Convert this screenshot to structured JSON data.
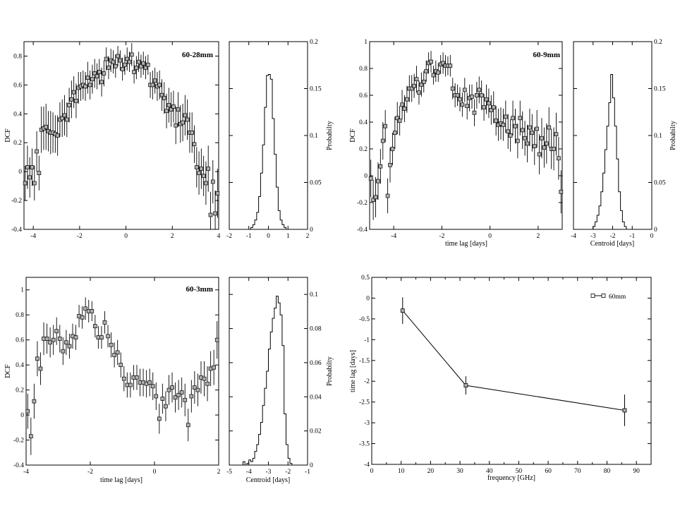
{
  "chart_data": [
    {
      "type": "scatter",
      "title": "60-28mm",
      "xlabel": "",
      "ylabel": "DCF",
      "xlim": [
        -4.4,
        4.0
      ],
      "ylim": [
        -0.4,
        0.9
      ],
      "xticks": [
        "-4",
        "-2",
        "0",
        "2",
        "4"
      ],
      "yticks": [
        "-0.4",
        "-0.2",
        "0",
        "0.2",
        "0.4",
        "0.6",
        "0.8"
      ],
      "error_bars": true,
      "x": [
        -4.35,
        -4.25,
        -4.15,
        -4.05,
        -3.95,
        -3.85,
        -3.75,
        -3.65,
        -3.55,
        -3.45,
        -3.35,
        -3.25,
        -3.15,
        -3.05,
        -2.95,
        -2.85,
        -2.75,
        -2.65,
        -2.55,
        -2.45,
        -2.35,
        -2.25,
        -2.15,
        -2.05,
        -1.95,
        -1.85,
        -1.75,
        -1.65,
        -1.55,
        -1.45,
        -1.35,
        -1.25,
        -1.15,
        -1.05,
        -0.95,
        -0.85,
        -0.75,
        -0.65,
        -0.55,
        -0.45,
        -0.35,
        -0.25,
        -0.15,
        -0.05,
        0.05,
        0.15,
        0.25,
        0.35,
        0.45,
        0.55,
        0.65,
        0.75,
        0.85,
        0.95,
        1.05,
        1.15,
        1.25,
        1.35,
        1.45,
        1.55,
        1.65,
        1.75,
        1.85,
        1.95,
        2.05,
        2.15,
        2.25,
        2.35,
        2.45,
        2.55,
        2.65,
        2.75,
        2.85,
        2.95,
        3.05,
        3.15,
        3.25,
        3.35,
        3.45,
        3.55,
        3.65,
        3.75,
        3.85,
        3.95
      ],
      "y": [
        -0.08,
        0.03,
        -0.04,
        0.03,
        -0.08,
        0.14,
        -0.01,
        0.29,
        0.3,
        0.31,
        0.28,
        0.27,
        0.27,
        0.26,
        0.25,
        0.36,
        0.37,
        0.39,
        0.36,
        0.46,
        0.5,
        0.55,
        0.49,
        0.58,
        0.59,
        0.6,
        0.59,
        0.65,
        0.6,
        0.64,
        0.68,
        0.66,
        0.69,
        0.62,
        0.68,
        0.78,
        0.72,
        0.77,
        0.76,
        0.73,
        0.8,
        0.77,
        0.71,
        0.74,
        0.78,
        0.76,
        0.81,
        0.69,
        0.72,
        0.76,
        0.73,
        0.75,
        0.72,
        0.74,
        0.6,
        0.6,
        0.63,
        0.59,
        0.6,
        0.53,
        0.51,
        0.42,
        0.46,
        0.43,
        0.45,
        0.32,
        0.43,
        0.33,
        0.34,
        0.39,
        0.36,
        0.27,
        0.27,
        0.19,
        0.03,
        -0.01,
        0.02,
        -0.03,
        -0.08,
        0.02,
        -0.3,
        -0.07,
        -0.29,
        -0.15
      ],
      "yerr": [
        0.12,
        0.15,
        0.14,
        0.13,
        0.12,
        0.14,
        0.12,
        0.16,
        0.15,
        0.16,
        0.14,
        0.15,
        0.14,
        0.13,
        0.14,
        0.12,
        0.13,
        0.14,
        0.12,
        0.12,
        0.13,
        0.11,
        0.12,
        0.11,
        0.1,
        0.1,
        0.1,
        0.11,
        0.1,
        0.1,
        0.1,
        0.09,
        0.09,
        0.1,
        0.09,
        0.08,
        0.08,
        0.08,
        0.08,
        0.08,
        0.07,
        0.07,
        0.08,
        0.07,
        0.08,
        0.07,
        0.08,
        0.08,
        0.08,
        0.07,
        0.08,
        0.08,
        0.08,
        0.07,
        0.09,
        0.1,
        0.09,
        0.1,
        0.1,
        0.11,
        0.11,
        0.12,
        0.12,
        0.12,
        0.11,
        0.13,
        0.12,
        0.13,
        0.13,
        0.14,
        0.14,
        0.14,
        0.14,
        0.13,
        0.14,
        0.15,
        0.14,
        0.14,
        0.15,
        0.16,
        0.16,
        0.15,
        0.16,
        0.17
      ],
      "fit_line_through_points": false,
      "stroke": "#000000",
      "marker_fill": "#b0b0b0"
    },
    {
      "type": "histogram",
      "title": "",
      "xlabel": "",
      "ylabel": "Probabilty",
      "y_axis_side": "right",
      "xlim": [
        -2.0,
        2.0
      ],
      "ylim": [
        0,
        0.2
      ],
      "xticks": [
        "-2",
        "-1",
        "0",
        "1",
        "2"
      ],
      "yticks": [
        "0",
        "0.05",
        "0.1",
        "0.15",
        "0.2"
      ],
      "bin_width": 0.1,
      "bin_start": -1.0,
      "values": [
        0.0,
        0.002,
        0.005,
        0.01,
        0.018,
        0.035,
        0.06,
        0.09,
        0.13,
        0.164,
        0.165,
        0.16,
        0.118,
        0.08,
        0.045,
        0.02,
        0.01,
        0.005,
        0.002,
        0.0
      ]
    },
    {
      "type": "scatter",
      "title": "60-9mm",
      "xlabel": "time lag [days]",
      "ylabel": "DCF",
      "xlim": [
        -5.0,
        3.0
      ],
      "ylim": [
        -0.4,
        1.0
      ],
      "xticks": [
        "-4",
        "-2",
        "0",
        "2"
      ],
      "yticks": [
        "-0.4",
        "-0.2",
        "0",
        "0.2",
        "0.4",
        "0.6",
        "0.8",
        "1"
      ],
      "error_bars": true,
      "x": [
        -4.95,
        -4.85,
        -4.75,
        -4.65,
        -4.55,
        -4.45,
        -4.35,
        -4.25,
        -4.15,
        -4.05,
        -3.95,
        -3.85,
        -3.75,
        -3.65,
        -3.55,
        -3.45,
        -3.35,
        -3.25,
        -3.15,
        -3.05,
        -2.95,
        -2.85,
        -2.75,
        -2.65,
        -2.55,
        -2.45,
        -2.35,
        -2.25,
        -2.15,
        -2.05,
        -1.95,
        -1.85,
        -1.75,
        -1.65,
        -1.55,
        -1.45,
        -1.35,
        -1.25,
        -1.15,
        -1.05,
        -0.95,
        -0.85,
        -0.75,
        -0.65,
        -0.55,
        -0.45,
        -0.35,
        -0.25,
        -0.15,
        -0.05,
        0.05,
        0.15,
        0.25,
        0.35,
        0.45,
        0.55,
        0.65,
        0.75,
        0.85,
        0.95,
        1.05,
        1.15,
        1.25,
        1.35,
        1.45,
        1.55,
        1.65,
        1.75,
        1.85,
        1.95,
        2.05,
        2.15,
        2.25,
        2.35,
        2.45,
        2.55,
        2.65,
        2.75,
        2.85,
        2.95
      ],
      "y": [
        -0.02,
        -0.18,
        -0.16,
        -0.04,
        0.07,
        0.26,
        0.37,
        -0.15,
        0.08,
        0.2,
        0.32,
        0.43,
        0.41,
        0.53,
        0.5,
        0.57,
        0.65,
        0.65,
        0.67,
        0.72,
        0.62,
        0.68,
        0.7,
        0.78,
        0.84,
        0.85,
        0.75,
        0.78,
        0.77,
        0.83,
        0.84,
        0.82,
        0.82,
        0.82,
        0.65,
        0.6,
        0.6,
        0.57,
        0.53,
        0.64,
        0.52,
        0.58,
        0.59,
        0.47,
        0.6,
        0.64,
        0.6,
        0.51,
        0.57,
        0.54,
        0.49,
        0.51,
        0.41,
        0.38,
        0.39,
        0.38,
        0.44,
        0.33,
        0.3,
        0.43,
        0.37,
        0.26,
        0.43,
        0.34,
        0.28,
        0.24,
        0.36,
        0.32,
        0.22,
        0.35,
        0.16,
        0.28,
        0.21,
        0.24,
        0.36,
        0.2,
        0.2,
        0.31,
        0.13,
        -0.12
      ],
      "yerr": [
        0.14,
        0.15,
        0.15,
        0.14,
        0.13,
        0.14,
        0.12,
        0.13,
        0.13,
        0.12,
        0.12,
        0.12,
        0.11,
        0.11,
        0.1,
        0.1,
        0.1,
        0.1,
        0.09,
        0.1,
        0.09,
        0.09,
        0.08,
        0.08,
        0.08,
        0.08,
        0.07,
        0.08,
        0.07,
        0.07,
        0.08,
        0.08,
        0.07,
        0.08,
        0.08,
        0.09,
        0.08,
        0.09,
        0.09,
        0.09,
        0.1,
        0.1,
        0.09,
        0.1,
        0.1,
        0.1,
        0.11,
        0.1,
        0.11,
        0.11,
        0.11,
        0.12,
        0.11,
        0.12,
        0.12,
        0.12,
        0.12,
        0.13,
        0.12,
        0.13,
        0.13,
        0.13,
        0.13,
        0.14,
        0.13,
        0.14,
        0.14,
        0.14,
        0.14,
        0.14,
        0.15,
        0.15,
        0.15,
        0.15,
        0.15,
        0.15,
        0.16,
        0.16,
        0.16,
        0.16
      ],
      "stroke": "#000000",
      "marker_fill": "#b0b0b0"
    },
    {
      "type": "histogram",
      "title": "",
      "xlabel": "Centroid [days]",
      "ylabel": "Probabilty",
      "y_axis_side": "right",
      "xlim": [
        -4.0,
        0.0
      ],
      "ylim": [
        0,
        0.2
      ],
      "xticks": [
        "-4",
        "-3",
        "-2",
        "-1",
        "0"
      ],
      "yticks": [
        "0",
        "0.05",
        "0.1",
        "0.15",
        "0.2"
      ],
      "bin_width": 0.1,
      "bin_start": -3.1,
      "values": [
        0.0,
        0.003,
        0.008,
        0.015,
        0.025,
        0.04,
        0.06,
        0.085,
        0.11,
        0.135,
        0.165,
        0.14,
        0.11,
        0.075,
        0.04,
        0.02,
        0.008,
        0.003,
        0.0
      ]
    },
    {
      "type": "scatter",
      "title": "60-3mm",
      "xlabel": "time lag [days]",
      "ylabel": "DCF",
      "xlim": [
        -4.0,
        2.0
      ],
      "ylim": [
        -0.4,
        1.1
      ],
      "xticks": [
        "-4",
        "-2",
        "0",
        "2"
      ],
      "yticks": [
        "-0.4",
        "-0.2",
        "0",
        "0.2",
        "0.4",
        "0.6",
        "0.8",
        "1"
      ],
      "error_bars": true,
      "x": [
        -3.95,
        -3.85,
        -3.75,
        -3.65,
        -3.55,
        -3.45,
        -3.35,
        -3.25,
        -3.15,
        -3.05,
        -2.95,
        -2.85,
        -2.75,
        -2.65,
        -2.55,
        -2.45,
        -2.35,
        -2.25,
        -2.15,
        -2.05,
        -1.95,
        -1.85,
        -1.75,
        -1.65,
        -1.55,
        -1.45,
        -1.35,
        -1.25,
        -1.15,
        -1.05,
        -0.95,
        -0.85,
        -0.75,
        -0.65,
        -0.55,
        -0.45,
        -0.35,
        -0.25,
        -0.15,
        -0.05,
        0.05,
        0.15,
        0.25,
        0.35,
        0.45,
        0.55,
        0.65,
        0.75,
        0.85,
        0.95,
        1.05,
        1.15,
        1.25,
        1.35,
        1.45,
        1.55,
        1.65,
        1.75,
        1.85,
        1.95
      ],
      "y": [
        0.03,
        -0.17,
        0.11,
        0.45,
        0.37,
        0.61,
        0.61,
        0.58,
        0.6,
        0.67,
        0.61,
        0.51,
        0.58,
        0.55,
        0.63,
        0.62,
        0.79,
        0.78,
        0.85,
        0.83,
        0.83,
        0.71,
        0.62,
        0.62,
        0.74,
        0.63,
        0.56,
        0.48,
        0.5,
        0.4,
        0.29,
        0.24,
        0.24,
        0.3,
        0.3,
        0.26,
        0.26,
        0.25,
        0.26,
        0.23,
        0.15,
        -0.03,
        0.13,
        0.07,
        0.2,
        0.22,
        0.14,
        0.16,
        0.18,
        0.12,
        -0.08,
        0.15,
        0.22,
        0.2,
        0.3,
        0.29,
        0.25,
        0.37,
        0.38,
        0.6
      ],
      "yerr": [
        0.14,
        0.15,
        0.14,
        0.14,
        0.13,
        0.13,
        0.12,
        0.12,
        0.12,
        0.11,
        0.11,
        0.11,
        0.1,
        0.1,
        0.1,
        0.1,
        0.09,
        0.09,
        0.09,
        0.09,
        0.08,
        0.09,
        0.09,
        0.09,
        0.09,
        0.09,
        0.1,
        0.1,
        0.1,
        0.1,
        0.1,
        0.1,
        0.1,
        0.1,
        0.1,
        0.11,
        0.11,
        0.11,
        0.11,
        0.11,
        0.11,
        0.12,
        0.12,
        0.12,
        0.12,
        0.12,
        0.12,
        0.12,
        0.12,
        0.13,
        0.13,
        0.13,
        0.13,
        0.13,
        0.13,
        0.14,
        0.14,
        0.14,
        0.14,
        0.15
      ],
      "stroke": "#000000",
      "marker_fill": "#b0b0b0"
    },
    {
      "type": "histogram",
      "title": "",
      "xlabel": "Centroid [days]",
      "ylabel": "Probabilty",
      "y_axis_side": "right",
      "xlim": [
        -5.0,
        -1.0
      ],
      "ylim": [
        0,
        0.11
      ],
      "xticks": [
        "-5",
        "-4",
        "-3",
        "-2",
        "-1"
      ],
      "yticks": [
        "0",
        "0.02",
        "0.04",
        "0.06",
        "0.08",
        "0.1"
      ],
      "bin_width": 0.1,
      "bin_start": -4.3,
      "values": [
        0.002,
        0.0,
        0.001,
        0.003,
        0.002,
        0.004,
        0.008,
        0.012,
        0.018,
        0.025,
        0.035,
        0.045,
        0.055,
        0.068,
        0.078,
        0.086,
        0.092,
        0.099,
        0.095,
        0.088,
        0.07,
        0.03,
        0.012,
        0.004,
        0.001,
        0.0
      ]
    },
    {
      "type": "line",
      "title": "",
      "xlabel": "frequency [GHz]",
      "ylabel": "time lag [days]",
      "xlim": [
        0,
        95
      ],
      "ylim": [
        -4,
        0.5
      ],
      "xticks": [
        "0",
        "10",
        "20",
        "30",
        "40",
        "50",
        "60",
        "70",
        "80",
        "90"
      ],
      "yticks": [
        "-4",
        "-3.5",
        "-3",
        "-2.5",
        "-2",
        "-1.5",
        "-1",
        "-0.5",
        "0",
        "0.5"
      ],
      "legend_position": "top-right",
      "series": [
        {
          "name": "60mm",
          "x": [
            10.5,
            32,
            86
          ],
          "y": [
            -0.3,
            -2.1,
            -2.7
          ],
          "yerr": [
            0.32,
            0.22,
            0.38
          ],
          "color": "#000000"
        }
      ]
    }
  ]
}
